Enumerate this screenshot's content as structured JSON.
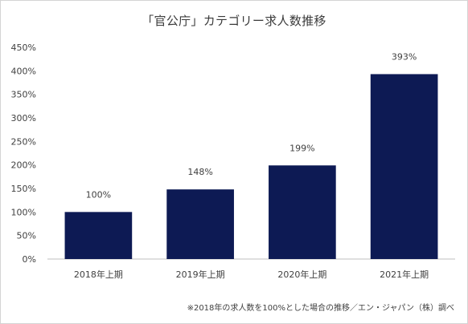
{
  "chart_data": {
    "type": "bar",
    "title": "「官公庁」カテゴリー求人数推移",
    "xlabel": "",
    "ylabel": "",
    "categories": [
      "2018年上期",
      "2019年上期",
      "2020年上期",
      "2021年上期"
    ],
    "values": [
      100,
      148,
      199,
      393
    ],
    "data_labels": [
      "100%",
      "148%",
      "199%",
      "393%"
    ],
    "ylim": [
      0,
      450
    ],
    "yticks": [
      0,
      50,
      100,
      150,
      200,
      250,
      300,
      350,
      400,
      450
    ],
    "ytick_labels": [
      "0%",
      "50%",
      "100%",
      "150%",
      "200%",
      "250%",
      "300%",
      "350%",
      "400%",
      "450%"
    ],
    "grid": false,
    "bar_color": "#0d1a54",
    "note": "※2018年の求人数を100%とした場合の推移／エン・ジャパン（株）調べ"
  }
}
